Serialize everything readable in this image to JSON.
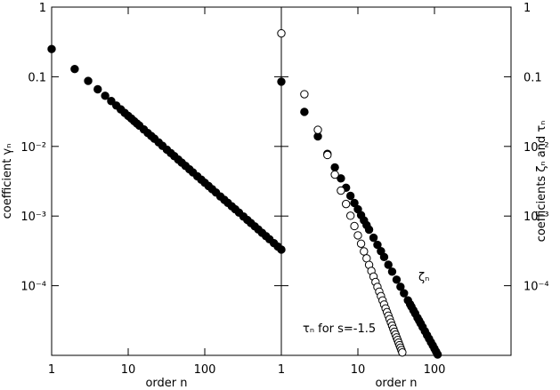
{
  "chart_data": [
    {
      "type": "scatter",
      "log_x": true,
      "log_y": true,
      "xlabel": "order n",
      "ylabel": "coefficient γₙ",
      "xlim": [
        1,
        1000
      ],
      "xticks": [
        1,
        10,
        100
      ],
      "ylim": [
        1e-05,
        1
      ],
      "yticks": [
        1,
        0.1,
        {
          "value": 0.01,
          "label": "10⁻²"
        },
        {
          "value": 0.001,
          "label": "10⁻³"
        },
        {
          "value": 0.0001,
          "label": "10⁻⁴"
        }
      ],
      "series": [
        {
          "color": "#000000",
          "marker": "filled",
          "x": [
            1,
            2,
            3,
            4,
            5,
            6,
            7,
            8,
            9,
            10,
            11,
            12,
            13,
            14,
            16,
            18,
            20,
            22,
            25,
            28,
            32,
            36,
            40,
            45,
            50,
            56,
            63,
            70,
            80,
            90,
            100,
            112,
            125,
            140,
            160,
            180,
            200,
            225,
            250,
            280,
            320,
            360,
            400,
            450,
            500,
            560,
            630,
            700,
            800,
            900,
            1000
          ],
          "values": [
            0.25,
            0.129,
            0.0871,
            0.0661,
            0.0533,
            0.0448,
            0.0386,
            0.034,
            0.0303,
            0.0274,
            0.0251,
            0.023,
            0.0213,
            0.0199,
            0.0175,
            0.0156,
            0.0141,
            0.0129,
            0.0114,
            0.0102,
            0.00898,
            0.00802,
            0.00725,
            0.00647,
            0.00585,
            0.00525,
            0.00469,
            0.00424,
            0.00372,
            0.00333,
            0.00301,
            0.0027,
            0.00243,
            0.00218,
            0.00191,
            0.00171,
            0.00155,
            0.00138,
            0.00125,
            0.00112,
            0.000984,
            0.000879,
            0.000794,
            0.00071,
            0.000641,
            0.000575,
            0.000514,
            0.000465,
            0.000408,
            0.000365,
            0.00033
          ]
        }
      ]
    },
    {
      "type": "scatter",
      "log_x": true,
      "log_y": true,
      "xlabel": "order n",
      "ylabel": "coefficients ζₙ and τₙ",
      "xlim": [
        1,
        1000
      ],
      "xticks": [
        1,
        10,
        100
      ],
      "ylim": [
        1e-05,
        1
      ],
      "yticks": [
        1,
        0.1,
        {
          "value": 0.01,
          "label": "10⁻²"
        },
        {
          "value": 0.001,
          "label": "10⁻³"
        },
        {
          "value": 0.0001,
          "label": "10⁻⁴"
        }
      ],
      "series": [
        {
          "name": "ζₙ",
          "color": "#000000",
          "marker": "filled",
          "x": [
            1,
            2,
            3,
            4,
            5,
            6,
            7,
            8,
            9,
            10,
            11,
            12,
            13,
            14,
            16,
            18,
            20,
            22,
            25,
            28,
            32,
            36,
            40,
            45,
            48,
            50,
            53,
            56,
            60,
            63,
            66,
            70,
            75,
            80,
            85,
            90,
            95,
            100,
            105,
            110
          ],
          "values": [
            0.085,
            0.0313,
            0.0139,
            0.00781,
            0.005,
            0.00347,
            0.00255,
            0.00195,
            0.00154,
            0.00125,
            0.00103,
            0.000868,
            0.00074,
            0.000638,
            0.000488,
            0.000386,
            0.000313,
            0.000258,
            0.0002,
            0.000159,
            0.000122,
            9.65e-05,
            7.81e-05,
            6.17e-05,
            5.43e-05,
            5e-05,
            4.45e-05,
            3.99e-05,
            3.47e-05,
            3.15e-05,
            2.87e-05,
            2.55e-05,
            2.22e-05,
            1.95e-05,
            1.73e-05,
            1.54e-05,
            1.39e-05,
            1.25e-05,
            1.13e-05,
            1.03e-05
          ]
        },
        {
          "name": "τₙ for s=-1.5",
          "color": "#000000",
          "marker": "open",
          "x": [
            1,
            2,
            3,
            4,
            5,
            6,
            7,
            8,
            9,
            10,
            11,
            12,
            13,
            14,
            15,
            16,
            17,
            18,
            19,
            20,
            21,
            22,
            23,
            24,
            25,
            26,
            27,
            28,
            29,
            30,
            31,
            32,
            33,
            34,
            35,
            36,
            37,
            38
          ],
          "values": [
            0.42,
            0.0562,
            0.0173,
            0.00753,
            0.00394,
            0.00232,
            0.00149,
            0.00101,
            0.000718,
            0.000528,
            0.000401,
            0.000311,
            0.000247,
            0.000199,
            0.000163,
            0.000135,
            0.000113,
            9.61e-05,
            8.22e-05,
            7.08e-05,
            6.15e-05,
            5.37e-05,
            4.72e-05,
            4.17e-05,
            3.71e-05,
            3.31e-05,
            2.96e-05,
            2.67e-05,
            2.41e-05,
            2.18e-05,
            1.99e-05,
            1.81e-05,
            1.66e-05,
            1.52e-05,
            1.4e-05,
            1.29e-05,
            1.19e-05,
            1.1e-05
          ]
        }
      ]
    }
  ]
}
